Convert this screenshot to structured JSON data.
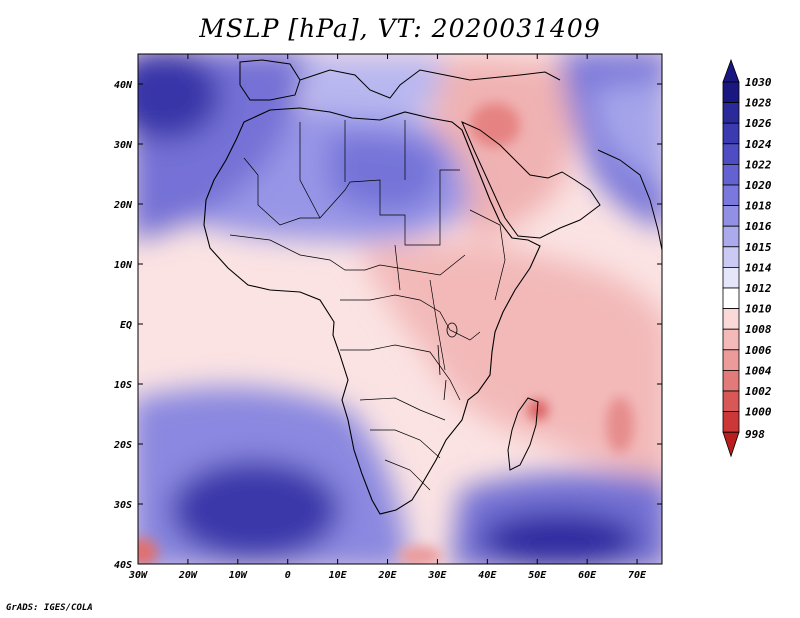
{
  "title": "MSLP [hPa], VT: 2020031409",
  "footer": "GrADS: IGES/COLA",
  "map": {
    "type": "shaded contour map",
    "variable": "MSLP",
    "units": "hPa",
    "lat_range": [
      -40,
      45
    ],
    "lon_range": [
      -30,
      75
    ],
    "lat_ticks": [
      "40N",
      "30N",
      "20N",
      "10N",
      "EQ",
      "10S",
      "20S",
      "30S",
      "40S"
    ],
    "lon_ticks": [
      "30W",
      "20W",
      "10W",
      "0",
      "10E",
      "20E",
      "30E",
      "40E",
      "50E",
      "60E",
      "70E"
    ]
  },
  "colorbar": {
    "levels": [
      "1030",
      "1028",
      "1026",
      "1024",
      "1022",
      "1020",
      "1018",
      "1016",
      "1015",
      "1014",
      "1012",
      "1010",
      "1008",
      "1006",
      "1004",
      "1002",
      "1000",
      "998"
    ],
    "colors": [
      "#1a1880",
      "#2a2a9a",
      "#3c3ab0",
      "#4f4dc4",
      "#6462d2",
      "#7a78dc",
      "#9290e4",
      "#abaaec",
      "#cbcaf5",
      "#e6e6fb",
      "#ffffff",
      "#fbd9d9",
      "#f4baba",
      "#ec9a9a",
      "#e27a7a",
      "#d85858",
      "#cc3838",
      "#b81e1e"
    ]
  }
}
